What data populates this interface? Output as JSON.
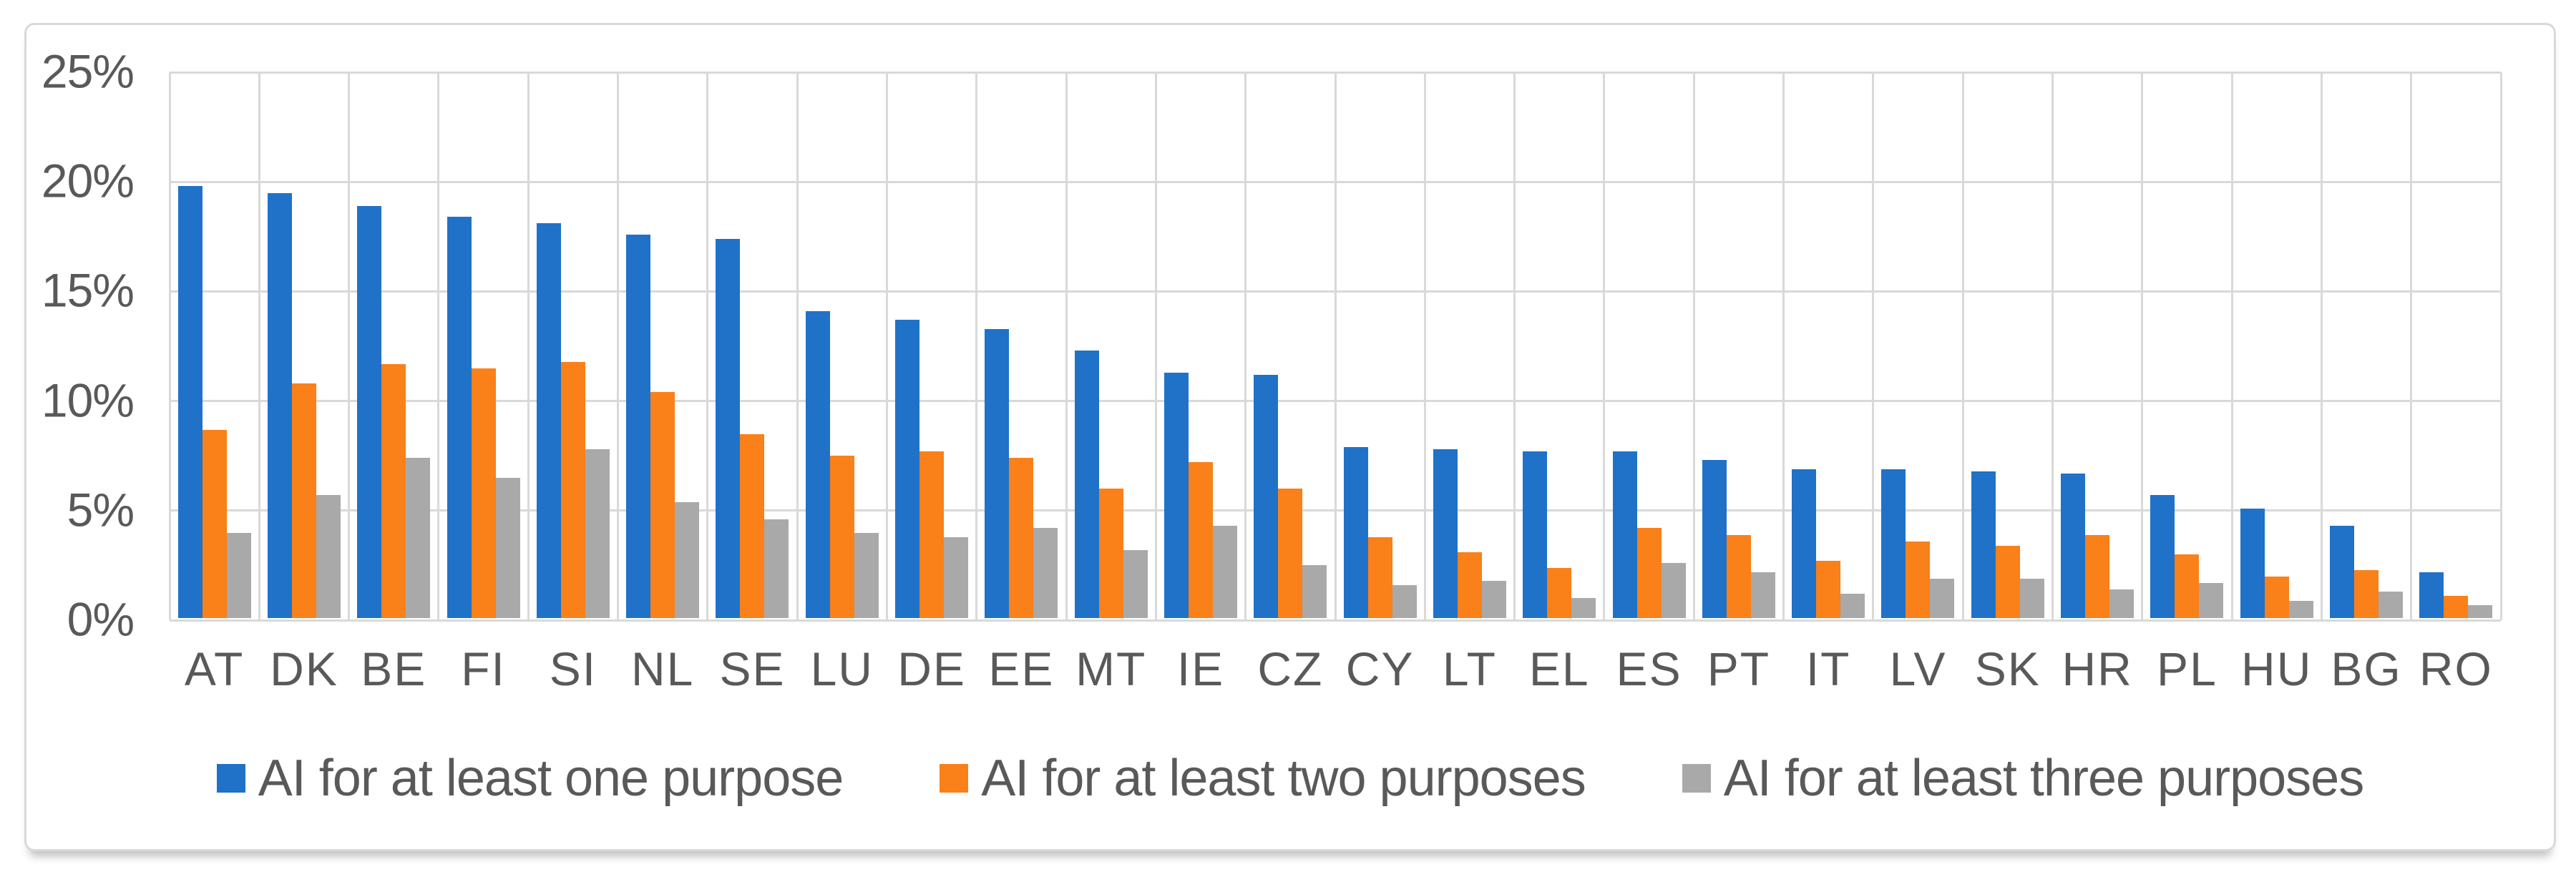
{
  "figure": {
    "kind": "grouped-bar-chart-figure",
    "background": "#ffffff"
  },
  "palette": {
    "series_blue": "#1F72C8",
    "series_orange": "#FA8019",
    "series_gray": "#A9A9A9",
    "gridline": "#D9D9D9",
    "frame_border": "#D9D9D9",
    "axis_text": "#595959"
  },
  "chart_data": {
    "type": "bar",
    "title": "",
    "xlabel": "",
    "ylabel": "",
    "ylim": [
      0,
      25
    ],
    "grid": "horizontal and vertical major gridlines",
    "legend_position": "bottom center",
    "yticks": [
      "0%",
      "5%",
      "10%",
      "15%",
      "20%",
      "25%"
    ],
    "ytick_values": [
      0,
      5,
      10,
      15,
      20,
      25
    ],
    "categories": [
      "AT",
      "DK",
      "BE",
      "FI",
      "SI",
      "NL",
      "SE",
      "LU",
      "DE",
      "EE",
      "MT",
      "IE",
      "CZ",
      "CY",
      "LT",
      "EL",
      "ES",
      "PT",
      "IT",
      "LV",
      "SK",
      "HR",
      "PL",
      "HU",
      "BG",
      "RO"
    ],
    "series": [
      {
        "name": "AI for at least one purpose",
        "color": "#1F72C8",
        "values": [
          19.7,
          19.4,
          18.8,
          18.3,
          18.0,
          17.5,
          17.3,
          14.0,
          13.6,
          13.2,
          12.2,
          11.2,
          11.1,
          7.8,
          7.7,
          7.6,
          7.6,
          7.2,
          6.8,
          6.8,
          6.7,
          6.6,
          5.6,
          5.0,
          4.2,
          2.1
        ]
      },
      {
        "name": "AI for at least two purposes",
        "color": "#FA8019",
        "values": [
          8.6,
          10.7,
          11.6,
          11.4,
          11.7,
          10.3,
          8.4,
          7.4,
          7.6,
          7.3,
          5.9,
          7.1,
          5.9,
          3.7,
          3.0,
          2.3,
          4.1,
          3.8,
          2.6,
          3.5,
          3.3,
          3.8,
          2.9,
          1.9,
          2.2,
          1.0
        ]
      },
      {
        "name": "AI for at least three purposes",
        "color": "#A9A9A9",
        "values": [
          3.9,
          5.6,
          7.3,
          6.4,
          7.7,
          5.3,
          4.5,
          3.9,
          3.7,
          4.1,
          3.1,
          4.2,
          2.4,
          1.5,
          1.7,
          0.9,
          2.5,
          2.1,
          1.1,
          1.8,
          1.8,
          1.3,
          1.6,
          0.8,
          1.2,
          0.6
        ]
      }
    ]
  }
}
